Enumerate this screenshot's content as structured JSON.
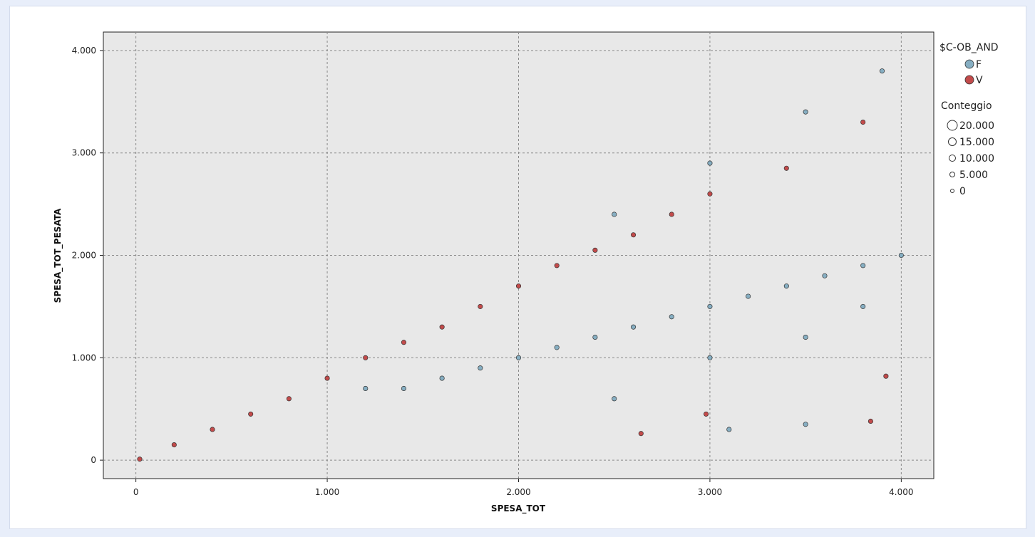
{
  "chart_data": {
    "type": "scatter",
    "xlabel": "SPESA_TOT",
    "ylabel": "SPESA_TOT_PESATA",
    "xlim": [
      -170,
      4170
    ],
    "ylim": [
      -180,
      4180
    ],
    "xticks": [
      0,
      1000,
      2000,
      3000,
      4000
    ],
    "xtick_labels": [
      "0",
      "1.000",
      "2.000",
      "3.000",
      "4.000"
    ],
    "yticks": [
      0,
      1000,
      2000,
      3000,
      4000
    ],
    "ytick_labels": [
      "0",
      "1.000",
      "2.000",
      "3.000",
      "4.000"
    ],
    "grid": true,
    "legend_position": "right",
    "color_legend": {
      "title": "$C-OB_AND",
      "entries": [
        {
          "label": "F",
          "color": "#86aec2"
        },
        {
          "label": "V",
          "color": "#c24b4b"
        }
      ]
    },
    "size_legend": {
      "title": "Conteggio",
      "entries": [
        "20.000",
        "15.000",
        "10.000",
        "5.000",
        "0"
      ]
    },
    "series": [
      {
        "name": "F",
        "color": "#86aec2",
        "points": [
          [
            1200,
            700
          ],
          [
            1400,
            700
          ],
          [
            1600,
            800
          ],
          [
            1800,
            900
          ],
          [
            2000,
            1000
          ],
          [
            2200,
            1100
          ],
          [
            2400,
            1200
          ],
          [
            2600,
            1300
          ],
          [
            2800,
            1400
          ],
          [
            3000,
            1500
          ],
          [
            3200,
            1600
          ],
          [
            3400,
            1700
          ],
          [
            3600,
            1800
          ],
          [
            3800,
            1900
          ],
          [
            4000,
            2000
          ],
          [
            2500,
            2400
          ],
          [
            3000,
            2900
          ],
          [
            3500,
            3400
          ],
          [
            3900,
            3800
          ],
          [
            3000,
            1000
          ],
          [
            3500,
            1200
          ],
          [
            3800,
            1500
          ],
          [
            2500,
            600
          ],
          [
            3100,
            300
          ],
          [
            3500,
            350
          ]
        ]
      },
      {
        "name": "V",
        "color": "#c24b4b",
        "points": [
          [
            20,
            10
          ],
          [
            200,
            150
          ],
          [
            400,
            300
          ],
          [
            600,
            450
          ],
          [
            800,
            600
          ],
          [
            1000,
            800
          ],
          [
            1200,
            1000
          ],
          [
            1400,
            1150
          ],
          [
            1600,
            1300
          ],
          [
            1800,
            1500
          ],
          [
            2000,
            1700
          ],
          [
            2200,
            1900
          ],
          [
            2400,
            2050
          ],
          [
            2600,
            2200
          ],
          [
            2800,
            2400
          ],
          [
            3000,
            2600
          ],
          [
            3400,
            2850
          ],
          [
            3800,
            3300
          ],
          [
            2640,
            260
          ],
          [
            3840,
            380
          ],
          [
            3920,
            820
          ],
          [
            2980,
            450
          ]
        ]
      }
    ]
  }
}
